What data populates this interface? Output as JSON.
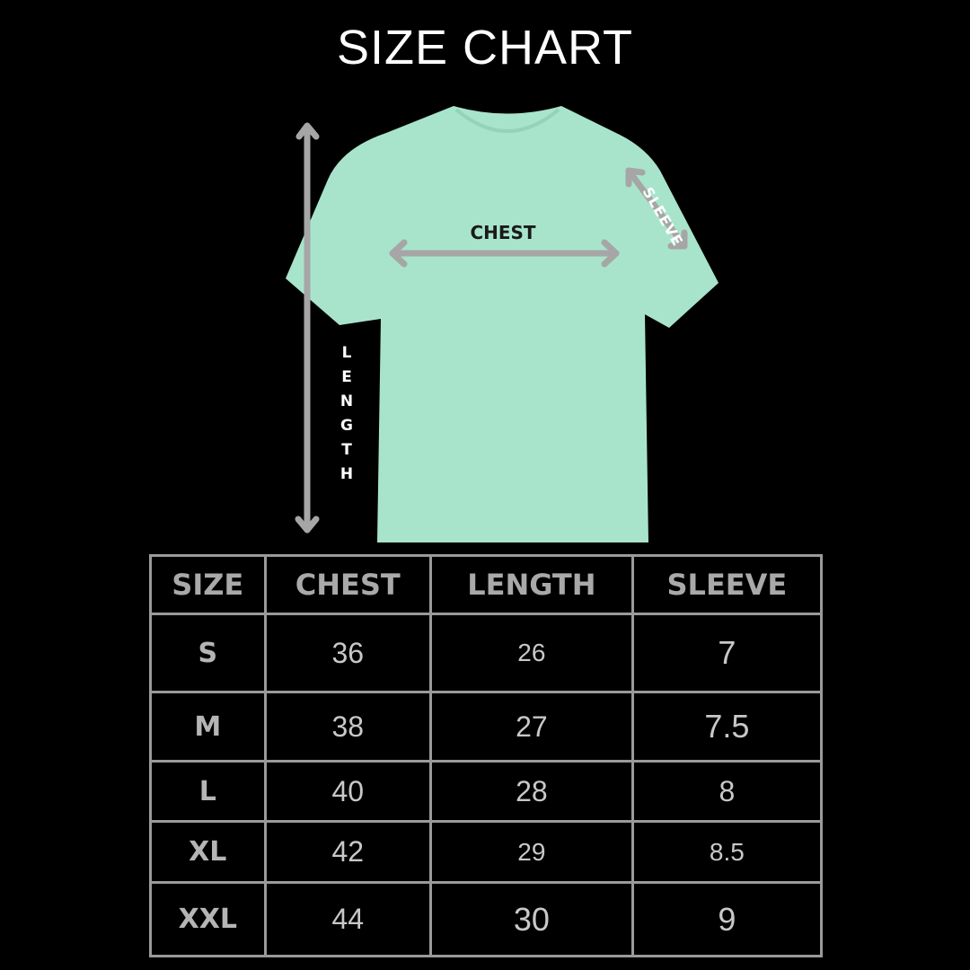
{
  "title": "SIZE CHART",
  "diagram": {
    "shirt_color": "#a8e4cc",
    "arrow_color": "#a6a6a6",
    "chest_label": "CHEST",
    "length_label": "LENGTH",
    "sleeve_label": "SLEEVE"
  },
  "table": {
    "headers": [
      "SIZE",
      "CHEST",
      "LENGTH",
      "SLEEVE"
    ],
    "rows": [
      {
        "size": "S",
        "chest": "36",
        "length": "26",
        "sleeve": "7"
      },
      {
        "size": "M",
        "chest": "38",
        "length": "27",
        "sleeve": "7.5"
      },
      {
        "size": "L",
        "chest": "40",
        "length": "28",
        "sleeve": "8"
      },
      {
        "size": "XL",
        "chest": "42",
        "length": "29",
        "sleeve": "8.5"
      },
      {
        "size": "XXL",
        "chest": "44",
        "length": "30",
        "sleeve": "9"
      }
    ]
  }
}
